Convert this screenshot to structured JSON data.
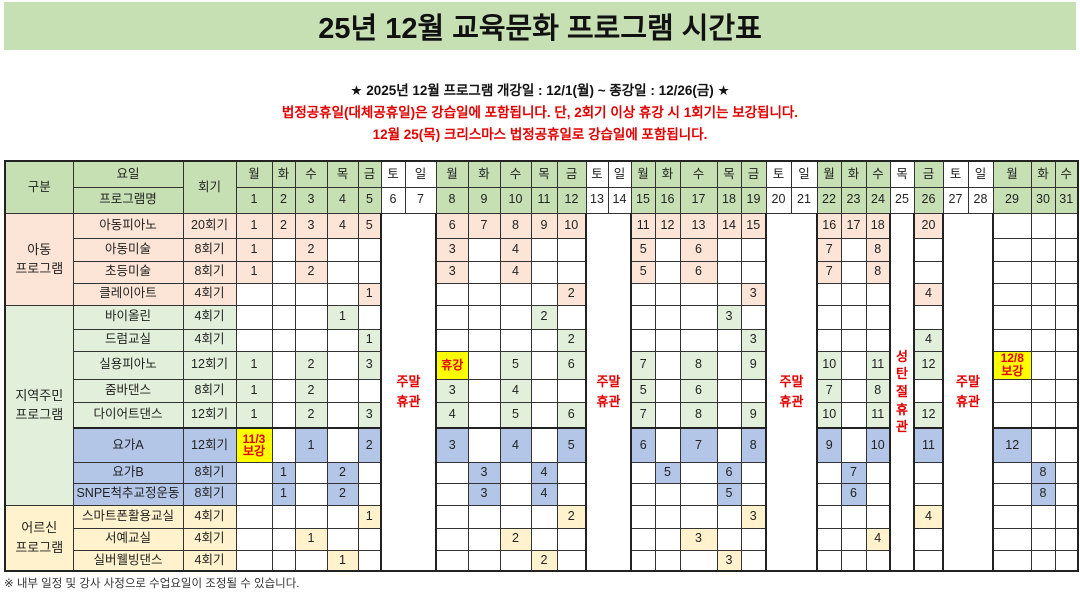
{
  "title": "25년 12월 교육문화 프로그램 시간표",
  "subtitle": {
    "line1": "★ 2025년 12월 프로그램 개강일 : 12/1(월) ~ 종강일 : 12/26(금) ★",
    "line2": "법정공휴일(대체공휴일)은 강습일에 포함됩니다. 단, 2회기 이상 휴강 시 1회기는 보강됩니다.",
    "line3": "12월 25(목) 크리스마스 법정공휴일로 강습일에 포함됩니다."
  },
  "header": {
    "category": "구분",
    "weekday": "요일",
    "program": "프로그램명",
    "sessions": "회기"
  },
  "weekdays": [
    "월",
    "화",
    "수",
    "목",
    "금",
    "토",
    "일",
    "월",
    "화",
    "수",
    "목",
    "금",
    "토",
    "일",
    "월",
    "화",
    "수",
    "목",
    "금",
    "토",
    "일",
    "월",
    "화",
    "수",
    "목",
    "금",
    "토",
    "일",
    "월",
    "화",
    "수"
  ],
  "weekend_label": "주말\n휴관",
  "christmas_label": "성\n탄\n절\n휴\n관",
  "colors": {
    "header_green": "#c6e0b4",
    "kids": "#fce4d6",
    "community": "#e2efda",
    "yoga": "#b4c6e7",
    "senior": "#fff2cc",
    "highlight": "#ffff00",
    "alert_red": "#e00000"
  },
  "groups": [
    {
      "label": "아동\n프로그램",
      "rows": 4
    },
    {
      "label": "지역주민\n프로그램",
      "rows": 8
    },
    {
      "label": "어르신\n프로그램",
      "rows": 3
    }
  ],
  "programs": [
    {
      "name": "아동피아노",
      "sessions": "20회기",
      "tone": "kid",
      "days": {
        "1": "1",
        "2": "2",
        "3": "3",
        "4": "4",
        "5": "5",
        "8": "6",
        "9": "7",
        "10": "8",
        "11": "9",
        "12": "10",
        "15": "11",
        "16": "12",
        "17": "13",
        "18": "14",
        "19": "15",
        "22": "16",
        "23": "17",
        "24": "18",
        "26": "20"
      }
    },
    {
      "name": "아동미술",
      "sessions": "8회기",
      "tone": "kid",
      "days": {
        "1": "1",
        "3": "2",
        "8": "3",
        "10": "4",
        "15": "5",
        "17": "6",
        "22": "7",
        "24": "8"
      }
    },
    {
      "name": "초등미술",
      "sessions": "8회기",
      "tone": "kid",
      "days": {
        "1": "1",
        "3": "2",
        "8": "3",
        "10": "4",
        "15": "5",
        "17": "6",
        "22": "7",
        "24": "8"
      }
    },
    {
      "name": "클레이아트",
      "sessions": "4회기",
      "tone": "kid",
      "days": {
        "5": "1",
        "12": "2",
        "19": "3",
        "26": "4"
      }
    },
    {
      "name": "바이올린",
      "sessions": "4회기",
      "tone": "com",
      "days": {
        "4": "1",
        "11": "2",
        "18": "3"
      }
    },
    {
      "name": "드럼교실",
      "sessions": "4회기",
      "tone": "com",
      "days": {
        "5": "1",
        "12": "2",
        "19": "3",
        "26": "4"
      }
    },
    {
      "name": "실용피아노",
      "sessions": "12회기",
      "tone": "com",
      "days": {
        "1": "1",
        "3": "2",
        "5": "3",
        "8": "휴강",
        "10": "5",
        "12": "6",
        "15": "7",
        "17": "8",
        "19": "9",
        "22": "10",
        "24": "11",
        "26": "12",
        "29": "12/8\n보강"
      }
    },
    {
      "name": "줌바댄스",
      "sessions": "8회기",
      "tone": "com",
      "days": {
        "1": "1",
        "3": "2",
        "8": "3",
        "10": "4",
        "15": "5",
        "17": "6",
        "22": "7",
        "24": "8"
      }
    },
    {
      "name": "다이어트댄스",
      "sessions": "12회기",
      "tone": "com",
      "days": {
        "1": "1",
        "3": "2",
        "5": "3",
        "8": "4",
        "10": "5",
        "12": "6",
        "15": "7",
        "17": "8",
        "19": "9",
        "22": "10",
        "24": "11",
        "26": "12"
      }
    },
    {
      "name": "요가A",
      "sessions": "12회기",
      "tone": "yoga",
      "days": {
        "1": "11/3\n보강",
        "3": "1",
        "5": "2",
        "8": "3",
        "10": "4",
        "12": "5",
        "15": "6",
        "17": "7",
        "19": "8",
        "22": "9",
        "24": "10",
        "26": "11",
        "29": "12"
      }
    },
    {
      "name": "요가B",
      "sessions": "8회기",
      "tone": "yoga",
      "days": {
        "2": "1",
        "4": "2",
        "9": "3",
        "11": "4",
        "16": "5",
        "18": "6",
        "23": "7",
        "30": "8"
      }
    },
    {
      "name": "SNPE척추교정운동",
      "sessions": "8회기",
      "tone": "yoga",
      "days": {
        "2": "1",
        "4": "2",
        "9": "3",
        "11": "4",
        "18": "5",
        "23": "6",
        "30": "8"
      }
    },
    {
      "name": "스마트폰활용교실",
      "sessions": "4회기",
      "tone": "sen",
      "days": {
        "5": "1",
        "12": "2",
        "19": "3",
        "26": "4"
      }
    },
    {
      "name": "서예교실",
      "sessions": "4회기",
      "tone": "sen",
      "days": {
        "3": "1",
        "10": "2",
        "17": "3",
        "24": "4"
      }
    },
    {
      "name": "실버웰빙댄스",
      "sessions": "4회기",
      "tone": "sen",
      "days": {
        "4": "1",
        "11": "2",
        "18": "3"
      }
    }
  ],
  "highlighted_values": [
    "휴강",
    "12/8\n보강",
    "11/3\n보강"
  ],
  "footnote": "※ 내부 일정 및 강사 사정으로 수업요일이 조정될 수 있습니다."
}
